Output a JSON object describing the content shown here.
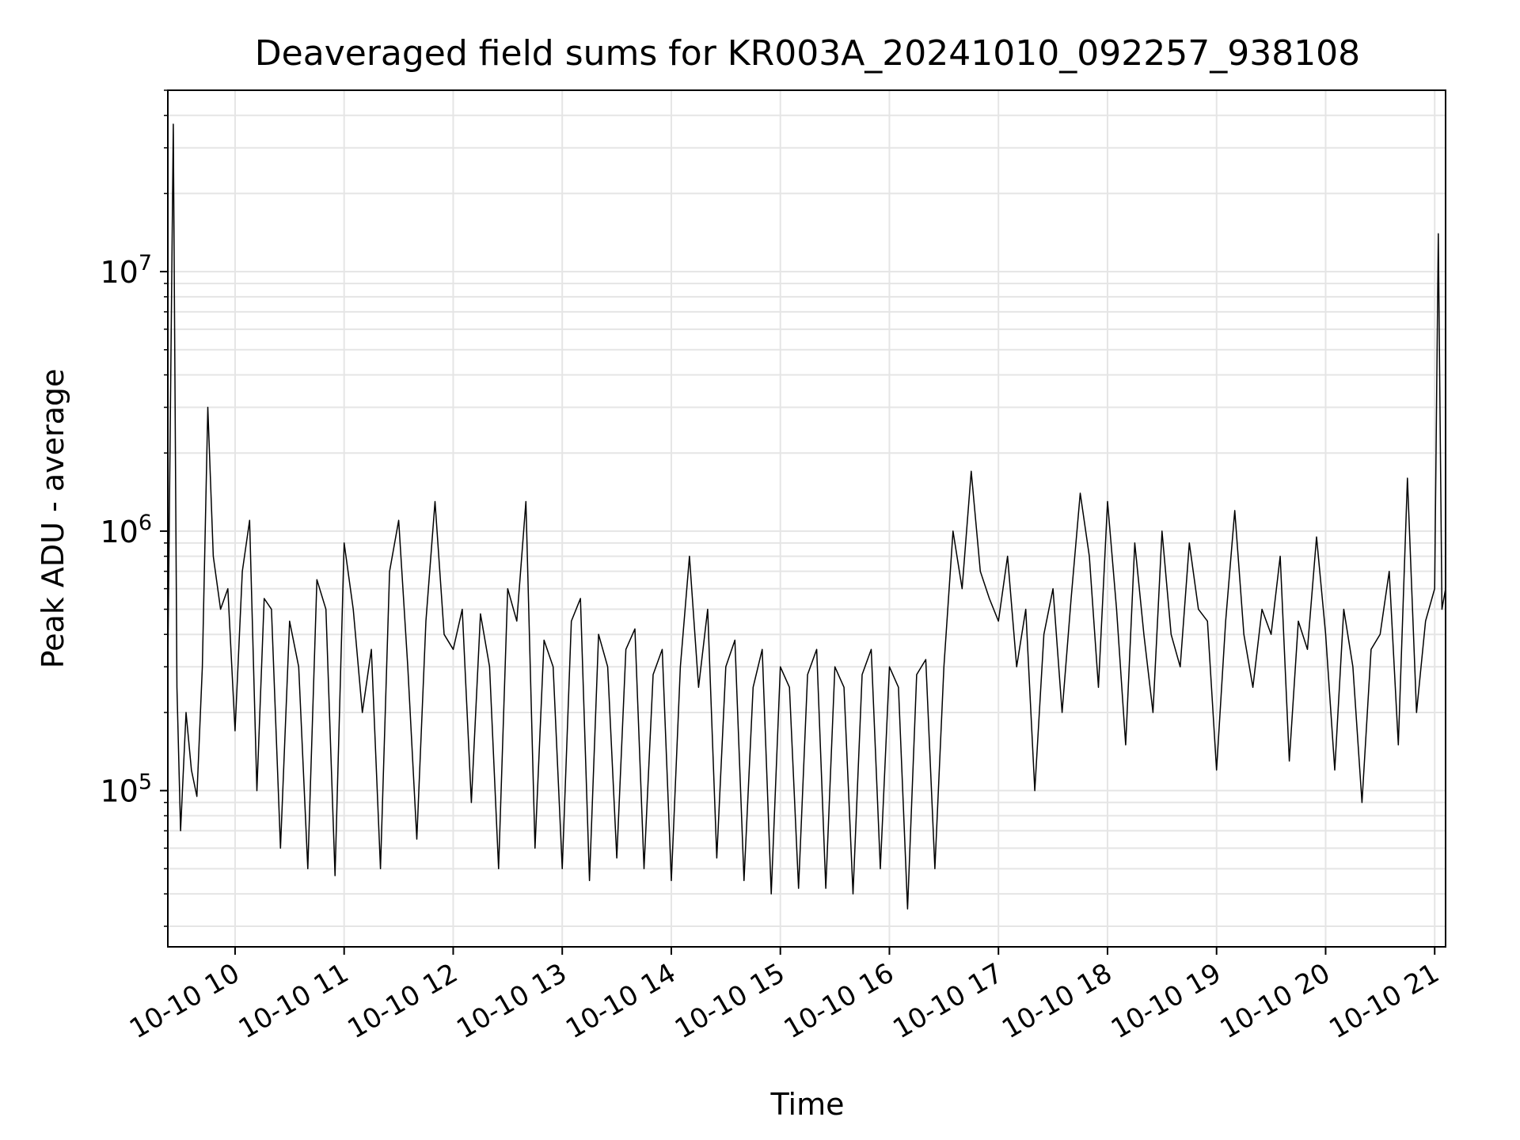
{
  "chart_data": {
    "type": "line",
    "title": "Deaveraged field sums for KR003A_20241010_092257_938108",
    "xlabel": "Time",
    "ylabel": "Peak ADU - average",
    "yscale": "log",
    "grid": true,
    "ylim": [
      25000,
      50000000
    ],
    "xlim": [
      "2024-10-10 09:23",
      "2024-10-10 21:06"
    ],
    "x_ticks": [
      {
        "t": "2024-10-10 10:00",
        "label": "10-10 10"
      },
      {
        "t": "2024-10-10 11:00",
        "label": "10-10 11"
      },
      {
        "t": "2024-10-10 12:00",
        "label": "10-10 12"
      },
      {
        "t": "2024-10-10 13:00",
        "label": "10-10 13"
      },
      {
        "t": "2024-10-10 14:00",
        "label": "10-10 14"
      },
      {
        "t": "2024-10-10 15:00",
        "label": "10-10 15"
      },
      {
        "t": "2024-10-10 16:00",
        "label": "10-10 16"
      },
      {
        "t": "2024-10-10 17:00",
        "label": "10-10 17"
      },
      {
        "t": "2024-10-10 18:00",
        "label": "10-10 18"
      },
      {
        "t": "2024-10-10 19:00",
        "label": "10-10 19"
      },
      {
        "t": "2024-10-10 20:00",
        "label": "10-10 20"
      },
      {
        "t": "2024-10-10 21:00",
        "label": "10-10 21"
      }
    ],
    "y_ticks": [
      {
        "value": 100000,
        "base": "10",
        "exp": "5"
      },
      {
        "value": 1000000,
        "base": "10",
        "exp": "6"
      },
      {
        "value": 10000000,
        "base": "10",
        "exp": "7"
      }
    ],
    "series": [
      {
        "color": "#000000",
        "x": [
          "2024-10-10 09:23",
          "2024-10-10 09:26",
          "2024-10-10 09:28",
          "2024-10-10 09:30",
          "2024-10-10 09:33",
          "2024-10-10 09:36",
          "2024-10-10 09:39",
          "2024-10-10 09:42",
          "2024-10-10 09:45",
          "2024-10-10 09:48",
          "2024-10-10 09:52",
          "2024-10-10 09:56",
          "2024-10-10 10:00",
          "2024-10-10 10:04",
          "2024-10-10 10:08",
          "2024-10-10 10:12",
          "2024-10-10 10:16",
          "2024-10-10 10:20",
          "2024-10-10 10:25",
          "2024-10-10 10:30",
          "2024-10-10 10:35",
          "2024-10-10 10:40",
          "2024-10-10 10:45",
          "2024-10-10 10:50",
          "2024-10-10 10:55",
          "2024-10-10 11:00",
          "2024-10-10 11:05",
          "2024-10-10 11:10",
          "2024-10-10 11:15",
          "2024-10-10 11:20",
          "2024-10-10 11:25",
          "2024-10-10 11:30",
          "2024-10-10 11:35",
          "2024-10-10 11:40",
          "2024-10-10 11:45",
          "2024-10-10 11:50",
          "2024-10-10 11:55",
          "2024-10-10 12:00",
          "2024-10-10 12:05",
          "2024-10-10 12:10",
          "2024-10-10 12:15",
          "2024-10-10 12:20",
          "2024-10-10 12:25",
          "2024-10-10 12:30",
          "2024-10-10 12:35",
          "2024-10-10 12:40",
          "2024-10-10 12:45",
          "2024-10-10 12:50",
          "2024-10-10 12:55",
          "2024-10-10 13:00",
          "2024-10-10 13:05",
          "2024-10-10 13:10",
          "2024-10-10 13:15",
          "2024-10-10 13:20",
          "2024-10-10 13:25",
          "2024-10-10 13:30",
          "2024-10-10 13:35",
          "2024-10-10 13:40",
          "2024-10-10 13:45",
          "2024-10-10 13:50",
          "2024-10-10 13:55",
          "2024-10-10 14:00",
          "2024-10-10 14:05",
          "2024-10-10 14:10",
          "2024-10-10 14:15",
          "2024-10-10 14:20",
          "2024-10-10 14:25",
          "2024-10-10 14:30",
          "2024-10-10 14:35",
          "2024-10-10 14:40",
          "2024-10-10 14:45",
          "2024-10-10 14:50",
          "2024-10-10 14:55",
          "2024-10-10 15:00",
          "2024-10-10 15:05",
          "2024-10-10 15:10",
          "2024-10-10 15:15",
          "2024-10-10 15:20",
          "2024-10-10 15:25",
          "2024-10-10 15:30",
          "2024-10-10 15:35",
          "2024-10-10 15:40",
          "2024-10-10 15:45",
          "2024-10-10 15:50",
          "2024-10-10 15:55",
          "2024-10-10 16:00",
          "2024-10-10 16:05",
          "2024-10-10 16:10",
          "2024-10-10 16:15",
          "2024-10-10 16:20",
          "2024-10-10 16:25",
          "2024-10-10 16:30",
          "2024-10-10 16:35",
          "2024-10-10 16:40",
          "2024-10-10 16:45",
          "2024-10-10 16:50",
          "2024-10-10 16:55",
          "2024-10-10 17:00",
          "2024-10-10 17:05",
          "2024-10-10 17:10",
          "2024-10-10 17:15",
          "2024-10-10 17:20",
          "2024-10-10 17:25",
          "2024-10-10 17:30",
          "2024-10-10 17:35",
          "2024-10-10 17:40",
          "2024-10-10 17:45",
          "2024-10-10 17:50",
          "2024-10-10 17:55",
          "2024-10-10 18:00",
          "2024-10-10 18:05",
          "2024-10-10 18:10",
          "2024-10-10 18:15",
          "2024-10-10 18:20",
          "2024-10-10 18:25",
          "2024-10-10 18:30",
          "2024-10-10 18:35",
          "2024-10-10 18:40",
          "2024-10-10 18:45",
          "2024-10-10 18:50",
          "2024-10-10 18:55",
          "2024-10-10 19:00",
          "2024-10-10 19:05",
          "2024-10-10 19:10",
          "2024-10-10 19:15",
          "2024-10-10 19:20",
          "2024-10-10 19:25",
          "2024-10-10 19:30",
          "2024-10-10 19:35",
          "2024-10-10 19:40",
          "2024-10-10 19:45",
          "2024-10-10 19:50",
          "2024-10-10 19:55",
          "2024-10-10 20:00",
          "2024-10-10 20:05",
          "2024-10-10 20:10",
          "2024-10-10 20:15",
          "2024-10-10 20:20",
          "2024-10-10 20:25",
          "2024-10-10 20:30",
          "2024-10-10 20:35",
          "2024-10-10 20:40",
          "2024-10-10 20:45",
          "2024-10-10 20:50",
          "2024-10-10 20:55",
          "2024-10-10 21:00",
          "2024-10-10 21:02",
          "2024-10-10 21:04",
          "2024-10-10 21:06"
        ],
        "y": [
          300000,
          37000000,
          250000,
          70000,
          200000,
          120000,
          95000,
          300000,
          3000000,
          800000,
          500000,
          600000,
          170000,
          700000,
          1100000,
          100000,
          550000,
          500000,
          60000,
          450000,
          300000,
          50000,
          650000,
          500000,
          47000,
          900000,
          500000,
          200000,
          350000,
          50000,
          700000,
          1100000,
          300000,
          65000,
          450000,
          1300000,
          400000,
          350000,
          500000,
          90000,
          480000,
          300000,
          50000,
          600000,
          450000,
          1300000,
          60000,
          380000,
          300000,
          50000,
          450000,
          550000,
          45000,
          400000,
          300000,
          55000,
          350000,
          420000,
          50000,
          280000,
          350000,
          45000,
          300000,
          800000,
          250000,
          500000,
          55000,
          300000,
          380000,
          45000,
          250000,
          350000,
          40000,
          300000,
          250000,
          42000,
          280000,
          350000,
          42000,
          300000,
          250000,
          40000,
          280000,
          350000,
          50000,
          300000,
          250000,
          35000,
          280000,
          320000,
          50000,
          300000,
          1000000,
          600000,
          1700000,
          700000,
          550000,
          450000,
          800000,
          300000,
          500000,
          100000,
          400000,
          600000,
          200000,
          550000,
          1400000,
          800000,
          250000,
          1300000,
          500000,
          150000,
          900000,
          400000,
          200000,
          1000000,
          400000,
          300000,
          900000,
          500000,
          450000,
          120000,
          450000,
          1200000,
          400000,
          250000,
          500000,
          400000,
          800000,
          130000,
          450000,
          350000,
          950000,
          400000,
          120000,
          500000,
          300000,
          90000,
          350000,
          400000,
          700000,
          150000,
          1600000,
          200000,
          450000,
          600000,
          14000000,
          500000,
          600000
        ]
      }
    ]
  }
}
